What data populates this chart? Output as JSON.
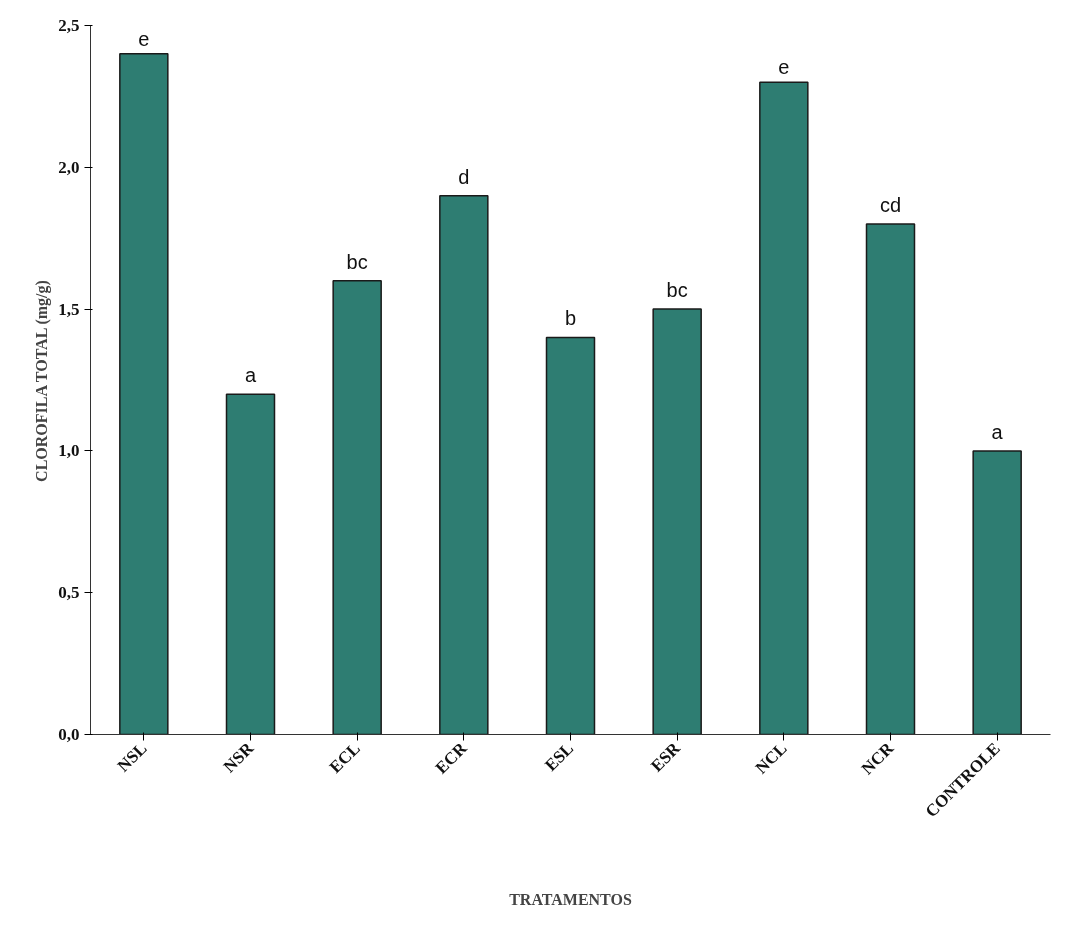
{
  "chart_data": {
    "type": "bar",
    "xlabel": "TRATAMENTOS",
    "ylabel": "CLOROFILA TOTAL (mg/g)",
    "categories": [
      "NSL",
      "NSR",
      "ECL",
      "ECR",
      "ESL",
      "ESR",
      "NCL",
      "NCR",
      "CONTROLE"
    ],
    "values": [
      2.4,
      1.2,
      1.6,
      1.9,
      1.4,
      1.5,
      2.3,
      1.8,
      1.0
    ],
    "color": "#2e7d72",
    "ylim": [
      0,
      2.5
    ],
    "yticks": [
      {
        "value": 0,
        "label": "0,0"
      },
      {
        "value": 0.5,
        "label": "0,5"
      },
      {
        "value": 1.0,
        "label": "1,0"
      },
      {
        "value": 1.5,
        "label": "1,5"
      },
      {
        "value": 2.0,
        "label": "2,0"
      },
      {
        "value": 2.5,
        "label": "2,5"
      }
    ],
    "grid": false,
    "annotations": [
      {
        "text": "e",
        "x": "NSL",
        "y": 2.4
      },
      {
        "text": "a",
        "x": "NSR",
        "y": 1.2
      },
      {
        "text": "bc",
        "x": "ECL",
        "y": 1.6
      },
      {
        "text": "d",
        "x": "ECR",
        "y": 1.9
      },
      {
        "text": "b",
        "x": "ESL",
        "y": 1.4
      },
      {
        "text": "bc",
        "x": "ESR",
        "y": 1.5
      },
      {
        "text": "e",
        "x": "NCL",
        "y": 2.3
      },
      {
        "text": "cd",
        "x": "NCR",
        "y": 1.8
      },
      {
        "text": "a",
        "x": "CONTROLE",
        "y": 1.0
      }
    ]
  }
}
